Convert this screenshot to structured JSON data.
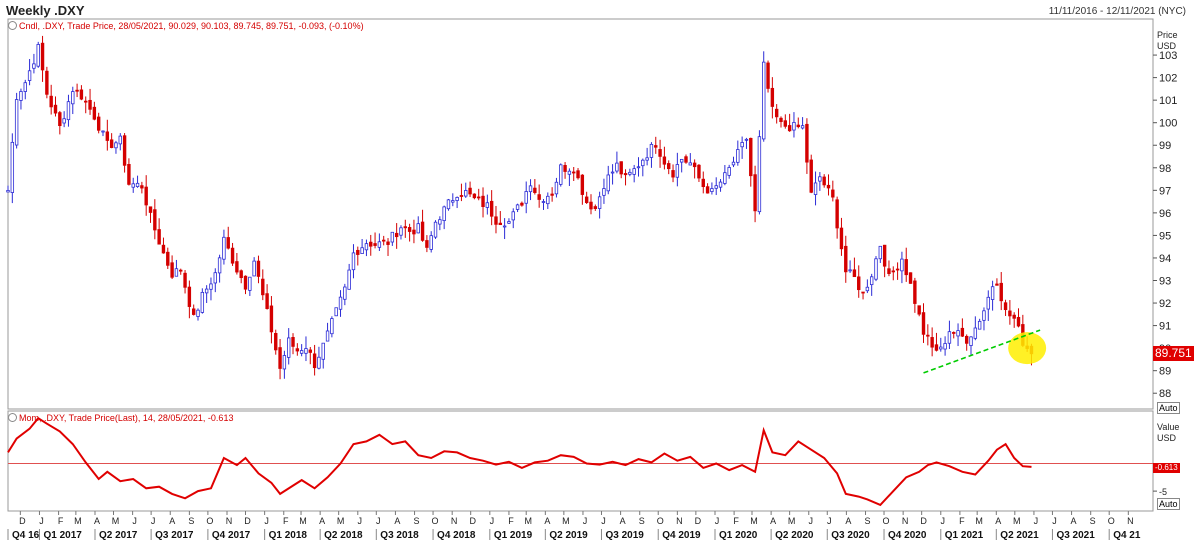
{
  "header": {
    "title": "Weekly .DXY",
    "date_range": "11/11/2016 - 12/11/2021 (NYC)"
  },
  "price_panel": {
    "legend": "Cndl, .DXY, Trade Price, 28/05/2021, 90.029, 90.103, 89.745, 89.751, -0.093, (-0.10%)",
    "axis_title": "Price",
    "axis_unit": "USD",
    "auto_label": "Auto",
    "last_value_label": "89.751"
  },
  "momentum_panel": {
    "legend": "Mom, .DXY, Trade Price(Last), 14, 28/05/2021, -0.613",
    "axis_title": "Value",
    "axis_unit": "USD",
    "auto_label": "Auto",
    "last_value_label": "-0.613"
  },
  "colors": {
    "up": "#2b2bd6",
    "down": "#d40000",
    "trendline": "#00cc00",
    "highlight": "#ffee00",
    "momentum": "#e00000"
  },
  "chart_data": [
    {
      "type": "candlestick",
      "title": "Weekly .DXY",
      "ylabel": "Price USD",
      "ylim": [
        87.3,
        104.6
      ],
      "yticks": [
        88,
        89,
        90,
        91,
        92,
        93,
        94,
        95,
        96,
        97,
        98,
        99,
        100,
        101,
        102,
        103
      ],
      "x_start": "2016-11-11",
      "x_end": "2021-12-11",
      "month_labels": [
        {
          "date": "2016-12-01",
          "label": "D"
        },
        {
          "date": "2017-01-01",
          "label": "J"
        },
        {
          "date": "2017-02-01",
          "label": "F"
        },
        {
          "date": "2017-03-01",
          "label": "M"
        },
        {
          "date": "2017-04-01",
          "label": "A"
        },
        {
          "date": "2017-05-01",
          "label": "M"
        },
        {
          "date": "2017-06-01",
          "label": "J"
        },
        {
          "date": "2017-07-01",
          "label": "J"
        },
        {
          "date": "2017-08-01",
          "label": "A"
        },
        {
          "date": "2017-09-01",
          "label": "S"
        },
        {
          "date": "2017-10-01",
          "label": "O"
        },
        {
          "date": "2017-11-01",
          "label": "N"
        },
        {
          "date": "2017-12-01",
          "label": "D"
        },
        {
          "date": "2018-01-01",
          "label": "J"
        },
        {
          "date": "2018-02-01",
          "label": "F"
        },
        {
          "date": "2018-03-01",
          "label": "M"
        },
        {
          "date": "2018-04-01",
          "label": "A"
        },
        {
          "date": "2018-05-01",
          "label": "M"
        },
        {
          "date": "2018-06-01",
          "label": "J"
        },
        {
          "date": "2018-07-01",
          "label": "J"
        },
        {
          "date": "2018-08-01",
          "label": "A"
        },
        {
          "date": "2018-09-01",
          "label": "S"
        },
        {
          "date": "2018-10-01",
          "label": "O"
        },
        {
          "date": "2018-11-01",
          "label": "N"
        },
        {
          "date": "2018-12-01",
          "label": "D"
        },
        {
          "date": "2019-01-01",
          "label": "J"
        },
        {
          "date": "2019-02-01",
          "label": "F"
        },
        {
          "date": "2019-03-01",
          "label": "M"
        },
        {
          "date": "2019-04-01",
          "label": "A"
        },
        {
          "date": "2019-05-01",
          "label": "M"
        },
        {
          "date": "2019-06-01",
          "label": "J"
        },
        {
          "date": "2019-07-01",
          "label": "J"
        },
        {
          "date": "2019-08-01",
          "label": "A"
        },
        {
          "date": "2019-09-01",
          "label": "S"
        },
        {
          "date": "2019-10-01",
          "label": "O"
        },
        {
          "date": "2019-11-01",
          "label": "N"
        },
        {
          "date": "2019-12-01",
          "label": "D"
        },
        {
          "date": "2020-01-01",
          "label": "J"
        },
        {
          "date": "2020-02-01",
          "label": "F"
        },
        {
          "date": "2020-03-01",
          "label": "M"
        },
        {
          "date": "2020-04-01",
          "label": "A"
        },
        {
          "date": "2020-05-01",
          "label": "M"
        },
        {
          "date": "2020-06-01",
          "label": "J"
        },
        {
          "date": "2020-07-01",
          "label": "J"
        },
        {
          "date": "2020-08-01",
          "label": "A"
        },
        {
          "date": "2020-09-01",
          "label": "S"
        },
        {
          "date": "2020-10-01",
          "label": "O"
        },
        {
          "date": "2020-11-01",
          "label": "N"
        },
        {
          "date": "2020-12-01",
          "label": "D"
        },
        {
          "date": "2021-01-01",
          "label": "J"
        },
        {
          "date": "2021-02-01",
          "label": "F"
        },
        {
          "date": "2021-03-01",
          "label": "M"
        },
        {
          "date": "2021-04-01",
          "label": "A"
        },
        {
          "date": "2021-05-01",
          "label": "M"
        },
        {
          "date": "2021-06-01",
          "label": "J"
        },
        {
          "date": "2021-07-01",
          "label": "J"
        },
        {
          "date": "2021-08-01",
          "label": "A"
        },
        {
          "date": "2021-09-01",
          "label": "S"
        },
        {
          "date": "2021-10-01",
          "label": "O"
        },
        {
          "date": "2021-11-01",
          "label": "N"
        }
      ],
      "quarter_labels": [
        {
          "date": "2016-11-11",
          "label": "Q4 16"
        },
        {
          "date": "2017-01-01",
          "label": "Q1 2017"
        },
        {
          "date": "2017-04-01",
          "label": "Q2 2017"
        },
        {
          "date": "2017-07-01",
          "label": "Q3 2017"
        },
        {
          "date": "2017-10-01",
          "label": "Q4 2017"
        },
        {
          "date": "2018-01-01",
          "label": "Q1 2018"
        },
        {
          "date": "2018-04-01",
          "label": "Q2 2018"
        },
        {
          "date": "2018-07-01",
          "label": "Q3 2018"
        },
        {
          "date": "2018-10-01",
          "label": "Q4 2018"
        },
        {
          "date": "2019-01-01",
          "label": "Q1 2019"
        },
        {
          "date": "2019-04-01",
          "label": "Q2 2019"
        },
        {
          "date": "2019-07-01",
          "label": "Q3 2019"
        },
        {
          "date": "2019-10-01",
          "label": "Q4 2019"
        },
        {
          "date": "2020-01-01",
          "label": "Q1 2020"
        },
        {
          "date": "2020-04-01",
          "label": "Q2 2020"
        },
        {
          "date": "2020-07-01",
          "label": "Q3 2020"
        },
        {
          "date": "2020-10-01",
          "label": "Q4 2020"
        },
        {
          "date": "2021-01-01",
          "label": "Q1 2021"
        },
        {
          "date": "2021-04-01",
          "label": "Q2 2021"
        },
        {
          "date": "2021-07-01",
          "label": "Q3 2021"
        },
        {
          "date": "2021-10-01",
          "label": "Q4 21"
        }
      ],
      "price_path": [
        [
          "2016-11-11",
          97.0
        ],
        [
          "2016-11-25",
          101.2
        ],
        [
          "2016-12-09",
          101.8
        ],
        [
          "2016-12-30",
          103.3
        ],
        [
          "2017-01-13",
          101.3
        ],
        [
          "2017-02-03",
          99.8
        ],
        [
          "2017-02-24",
          101.5
        ],
        [
          "2017-03-10",
          101.2
        ],
        [
          "2017-03-31",
          100.3
        ],
        [
          "2017-04-21",
          99.0
        ],
        [
          "2017-05-12",
          99.2
        ],
        [
          "2017-05-26",
          97.3
        ],
        [
          "2017-06-16",
          97.2
        ],
        [
          "2017-06-30",
          95.8
        ],
        [
          "2017-07-21",
          94.2
        ],
        [
          "2017-08-04",
          93.3
        ],
        [
          "2017-08-18",
          93.5
        ],
        [
          "2017-09-08",
          91.3
        ],
        [
          "2017-09-22",
          92.3
        ],
        [
          "2017-10-13",
          93.3
        ],
        [
          "2017-10-27",
          94.8
        ],
        [
          "2017-11-17",
          93.5
        ],
        [
          "2017-12-01",
          92.8
        ],
        [
          "2017-12-15",
          93.9
        ],
        [
          "2017-12-29",
          92.3
        ],
        [
          "2018-01-12",
          90.8
        ],
        [
          "2018-01-26",
          89.1
        ],
        [
          "2018-02-09",
          90.3
        ],
        [
          "2018-02-23",
          89.9
        ],
        [
          "2018-03-09",
          90.1
        ],
        [
          "2018-03-23",
          89.3
        ],
        [
          "2018-04-06",
          90.1
        ],
        [
          "2018-04-27",
          91.6
        ],
        [
          "2018-05-11",
          92.6
        ],
        [
          "2018-05-25",
          94.2
        ],
        [
          "2018-06-15",
          94.7
        ],
        [
          "2018-06-29",
          94.6
        ],
        [
          "2018-07-20",
          94.7
        ],
        [
          "2018-08-10",
          95.4
        ],
        [
          "2018-08-24",
          95.2
        ],
        [
          "2018-09-07",
          95.3
        ],
        [
          "2018-09-21",
          94.3
        ],
        [
          "2018-10-05",
          95.6
        ],
        [
          "2018-10-26",
          96.4
        ],
        [
          "2018-11-09",
          96.9
        ],
        [
          "2018-11-23",
          96.9
        ],
        [
          "2018-12-07",
          96.6
        ],
        [
          "2018-12-28",
          96.3
        ],
        [
          "2019-01-11",
          95.7
        ],
        [
          "2019-02-01",
          95.6
        ],
        [
          "2019-02-22",
          96.5
        ],
        [
          "2019-03-08",
          97.4
        ],
        [
          "2019-03-22",
          96.6
        ],
        [
          "2019-04-12",
          96.9
        ],
        [
          "2019-04-26",
          98.0
        ],
        [
          "2019-05-17",
          98.0
        ],
        [
          "2019-06-07",
          96.5
        ],
        [
          "2019-06-21",
          96.2
        ],
        [
          "2019-07-05",
          97.3
        ],
        [
          "2019-07-26",
          98.1
        ],
        [
          "2019-08-09",
          97.5
        ],
        [
          "2019-08-23",
          97.9
        ],
        [
          "2019-09-06",
          98.4
        ],
        [
          "2019-09-27",
          99.1
        ],
        [
          "2019-10-11",
          98.3
        ],
        [
          "2019-10-25",
          97.8
        ],
        [
          "2019-11-08",
          98.4
        ],
        [
          "2019-11-22",
          98.2
        ],
        [
          "2019-12-13",
          97.2
        ],
        [
          "2019-12-27",
          96.9
        ],
        [
          "2020-01-17",
          97.6
        ],
        [
          "2020-02-07",
          98.6
        ],
        [
          "2020-02-21",
          99.3
        ],
        [
          "2020-03-06",
          96.0
        ],
        [
          "2020-03-20",
          102.5
        ],
        [
          "2020-04-03",
          100.5
        ],
        [
          "2020-04-17",
          99.9
        ],
        [
          "2020-05-08",
          99.8
        ],
        [
          "2020-05-22",
          99.8
        ],
        [
          "2020-06-05",
          96.8
        ],
        [
          "2020-06-19",
          97.6
        ],
        [
          "2020-07-10",
          96.6
        ],
        [
          "2020-07-31",
          93.4
        ],
        [
          "2020-08-14",
          93.1
        ],
        [
          "2020-08-28",
          92.4
        ],
        [
          "2020-09-11",
          93.3
        ],
        [
          "2020-09-25",
          94.6
        ],
        [
          "2020-10-09",
          93.1
        ],
        [
          "2020-10-30",
          94.0
        ],
        [
          "2020-11-13",
          92.8
        ],
        [
          "2020-12-04",
          90.7
        ],
        [
          "2020-12-18",
          90.0
        ],
        [
          "2021-01-01",
          89.9
        ],
        [
          "2021-01-15",
          90.8
        ],
        [
          "2021-01-29",
          90.6
        ],
        [
          "2021-02-12",
          90.4
        ],
        [
          "2021-02-26",
          90.9
        ],
        [
          "2021-03-12",
          91.7
        ],
        [
          "2021-03-26",
          92.8
        ],
        [
          "2021-04-02",
          93.0
        ],
        [
          "2021-04-16",
          91.6
        ],
        [
          "2021-04-30",
          91.3
        ],
        [
          "2021-05-14",
          90.3
        ],
        [
          "2021-05-28",
          89.75
        ]
      ],
      "trendline": [
        [
          "2020-12-04",
          88.9
        ],
        [
          "2021-06-11",
          90.8
        ]
      ],
      "highlight_center": [
        "2021-05-21",
        90.0
      ],
      "last_close": 89.751
    },
    {
      "type": "line",
      "title": "Mom, .DXY, Trade Price(Last), 14",
      "ylabel": "Value USD",
      "ylim": [
        -8.6,
        9.5
      ],
      "yticks": [
        0,
        -5
      ],
      "reference_line": 0,
      "last_value": -0.613,
      "points": [
        [
          "2016-11-11",
          2.0
        ],
        [
          "2016-11-25",
          4.5
        ],
        [
          "2016-12-16",
          6.3
        ],
        [
          "2016-12-30",
          8.2
        ],
        [
          "2017-01-13",
          7.2
        ],
        [
          "2017-02-03",
          5.8
        ],
        [
          "2017-02-24",
          3.5
        ],
        [
          "2017-03-17",
          0.2
        ],
        [
          "2017-04-07",
          -2.8
        ],
        [
          "2017-04-21",
          -1.5
        ],
        [
          "2017-05-12",
          -3.2
        ],
        [
          "2017-06-02",
          -2.8
        ],
        [
          "2017-06-23",
          -4.5
        ],
        [
          "2017-07-14",
          -4.2
        ],
        [
          "2017-08-04",
          -5.5
        ],
        [
          "2017-08-25",
          -6.3
        ],
        [
          "2017-09-15",
          -5.0
        ],
        [
          "2017-10-06",
          -4.5
        ],
        [
          "2017-10-27",
          1.0
        ],
        [
          "2017-11-17",
          -0.3
        ],
        [
          "2017-12-01",
          1.0
        ],
        [
          "2017-12-22",
          -1.8
        ],
        [
          "2018-01-12",
          -3.5
        ],
        [
          "2018-01-26",
          -5.5
        ],
        [
          "2018-02-16",
          -4.0
        ],
        [
          "2018-03-02",
          -3.0
        ],
        [
          "2018-03-23",
          -4.5
        ],
        [
          "2018-04-13",
          -2.5
        ],
        [
          "2018-05-04",
          0.0
        ],
        [
          "2018-05-25",
          3.5
        ],
        [
          "2018-06-15",
          4.0
        ],
        [
          "2018-07-06",
          5.2
        ],
        [
          "2018-07-27",
          3.5
        ],
        [
          "2018-08-17",
          4.0
        ],
        [
          "2018-09-07",
          1.5
        ],
        [
          "2018-09-28",
          1.0
        ],
        [
          "2018-10-19",
          2.2
        ],
        [
          "2018-11-09",
          2.0
        ],
        [
          "2018-11-30",
          1.0
        ],
        [
          "2018-12-21",
          0.5
        ],
        [
          "2019-01-11",
          -0.2
        ],
        [
          "2019-02-01",
          0.3
        ],
        [
          "2019-02-22",
          -0.8
        ],
        [
          "2019-03-15",
          0.2
        ],
        [
          "2019-04-05",
          0.5
        ],
        [
          "2019-04-26",
          1.5
        ],
        [
          "2019-05-17",
          1.2
        ],
        [
          "2019-06-07",
          0.0
        ],
        [
          "2019-06-28",
          -0.2
        ],
        [
          "2019-07-19",
          0.3
        ],
        [
          "2019-08-09",
          -0.3
        ],
        [
          "2019-08-30",
          0.8
        ],
        [
          "2019-09-20",
          0.2
        ],
        [
          "2019-10-11",
          1.8
        ],
        [
          "2019-11-01",
          0.5
        ],
        [
          "2019-11-22",
          1.2
        ],
        [
          "2019-12-13",
          -0.8
        ],
        [
          "2020-01-03",
          0.0
        ],
        [
          "2020-01-24",
          -1.2
        ],
        [
          "2020-02-14",
          -0.3
        ],
        [
          "2020-03-06",
          -1.5
        ],
        [
          "2020-03-20",
          6.0
        ],
        [
          "2020-04-03",
          2.0
        ],
        [
          "2020-04-24",
          1.5
        ],
        [
          "2020-05-15",
          4.0
        ],
        [
          "2020-06-05",
          2.5
        ],
        [
          "2020-06-26",
          1.0
        ],
        [
          "2020-07-17",
          -1.8
        ],
        [
          "2020-07-31",
          -5.5
        ],
        [
          "2020-08-21",
          -6.0
        ],
        [
          "2020-09-04",
          -6.5
        ],
        [
          "2020-09-25",
          -7.5
        ],
        [
          "2020-10-16",
          -5.0
        ],
        [
          "2020-11-06",
          -2.5
        ],
        [
          "2020-11-27",
          -1.5
        ],
        [
          "2020-12-11",
          -0.3
        ],
        [
          "2020-12-25",
          0.2
        ],
        [
          "2021-01-15",
          -0.5
        ],
        [
          "2021-02-05",
          -1.5
        ],
        [
          "2021-02-26",
          -2.0
        ],
        [
          "2021-03-19",
          0.5
        ],
        [
          "2021-04-02",
          2.5
        ],
        [
          "2021-04-16",
          3.5
        ],
        [
          "2021-04-30",
          1.0
        ],
        [
          "2021-05-14",
          -0.5
        ],
        [
          "2021-05-28",
          -0.613
        ]
      ]
    }
  ]
}
